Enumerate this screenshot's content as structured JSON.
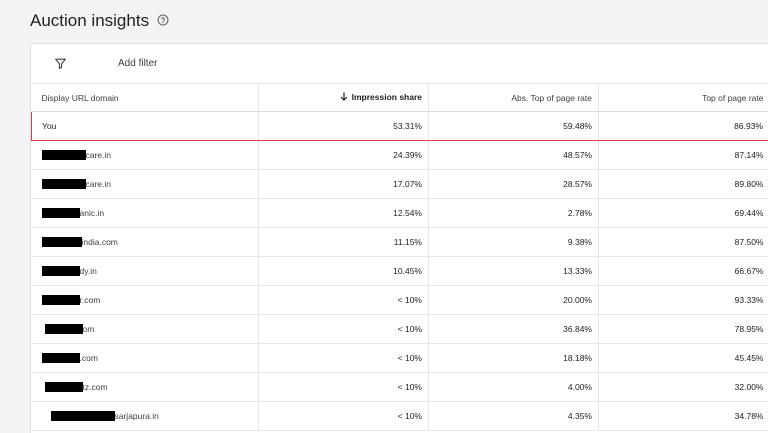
{
  "header": {
    "title": "Auction insights",
    "help_icon": "help-circle-icon"
  },
  "filter_bar": {
    "filter_icon": "filter-icon",
    "add_filter_label": "Add filter"
  },
  "table": {
    "columns": [
      {
        "label": "Display URL domain"
      },
      {
        "label": "Impression share",
        "sort": "descending",
        "sort_icon": "arrow-down-icon"
      },
      {
        "label": "Abs. Top of page rate"
      },
      {
        "label": "Top of page rate"
      }
    ],
    "rows": [
      {
        "domain": "You",
        "redacted": false,
        "impression_share": "53.31%",
        "abs_top": "59.48%",
        "top": "86.93%",
        "highlighted": true
      },
      {
        "domain": "care.in",
        "redacted": true,
        "impression_share": "24.39%",
        "abs_top": "48.57%",
        "top": "87.14%"
      },
      {
        "domain": "care.in",
        "redacted": true,
        "impression_share": "17.07%",
        "abs_top": "28.57%",
        "top": "89.80%"
      },
      {
        "domain": "anic.in",
        "redacted": true,
        "impression_share": "12.54%",
        "abs_top": "2.78%",
        "top": "69.44%"
      },
      {
        "domain": "india.com",
        "redacted": true,
        "impression_share": "11.15%",
        "abs_top": "9.38%",
        "top": "87.50%"
      },
      {
        "domain": "dy.in",
        "redacted": true,
        "impression_share": "10.45%",
        "abs_top": "13.33%",
        "top": "66.67%"
      },
      {
        "domain": "r.com",
        "redacted": true,
        "impression_share": "< 10%",
        "abs_top": "20.00%",
        "top": "93.33%"
      },
      {
        "domain": "om",
        "redacted": true,
        "impression_share": "< 10%",
        "abs_top": "36.84%",
        "top": "78.95%"
      },
      {
        "domain": ".com",
        "redacted": true,
        "impression_share": "< 10%",
        "abs_top": "18.18%",
        "top": "45.45%"
      },
      {
        "domain": "tz.com",
        "redacted": true,
        "impression_share": "< 10%",
        "abs_top": "4.00%",
        "top": "32.00%"
      },
      {
        "domain": "sarjapura.in",
        "redacted": true,
        "impression_share": "< 10%",
        "abs_top": "4.35%",
        "top": "34.78%"
      }
    ]
  },
  "colors": {
    "highlight_border": "#d93a4f",
    "redaction": "#000000"
  }
}
